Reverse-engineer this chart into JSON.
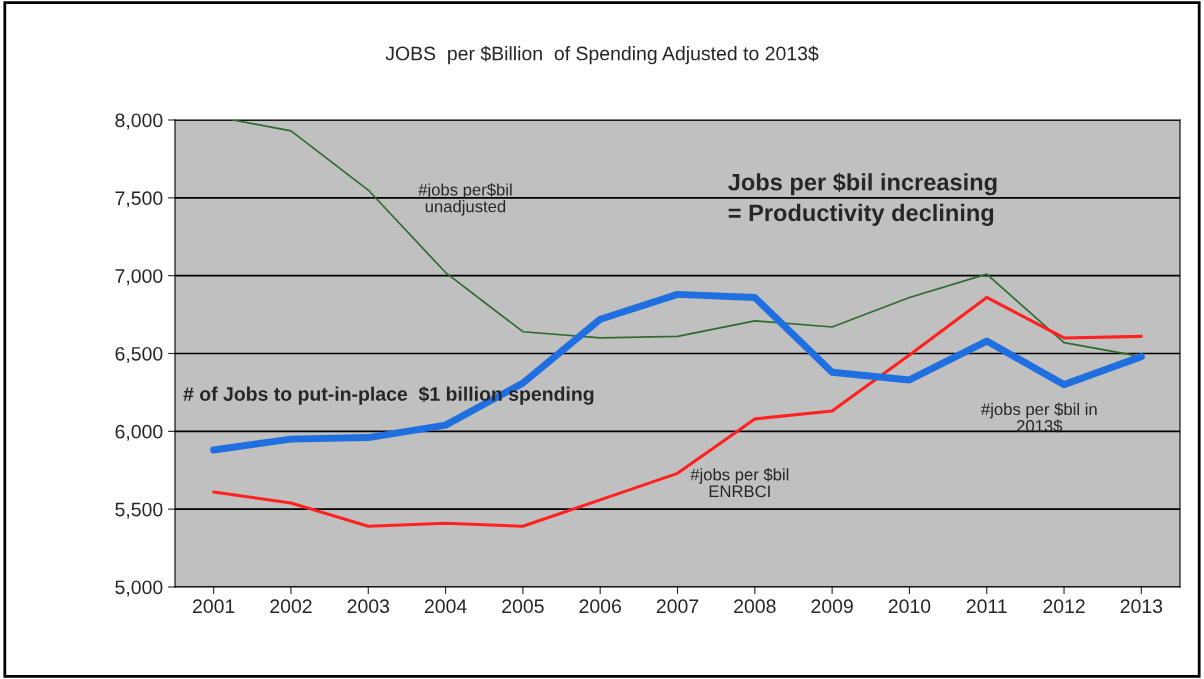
{
  "chart_data": {
    "type": "line",
    "title": "JOBS  per $Billion  of Spending Adjusted to 2013$",
    "x": [
      2001,
      2002,
      2003,
      2004,
      2005,
      2006,
      2007,
      2008,
      2009,
      2010,
      2011,
      2012,
      2013
    ],
    "xlim": [
      2000.5,
      2013.5
    ],
    "xticks": [
      2001,
      2002,
      2003,
      2004,
      2005,
      2006,
      2007,
      2008,
      2009,
      2010,
      2011,
      2012,
      2013
    ],
    "ylim": [
      5000,
      8000
    ],
    "yticks": [
      {
        "value": 5000,
        "label": "5,000"
      },
      {
        "value": 5500,
        "label": "5,500"
      },
      {
        "value": 6000,
        "label": "6,000"
      },
      {
        "value": 6500,
        "label": "6,500"
      },
      {
        "value": 7000,
        "label": "7,000"
      },
      {
        "value": 7500,
        "label": "7,500"
      },
      {
        "value": 8000,
        "label": "8,000"
      }
    ],
    "grid": "y",
    "marker": "none",
    "line_style": "solid",
    "series": [
      {
        "color": "#2e6b2e",
        "x": [
          2001.25,
          2002,
          2003,
          2004,
          2005,
          2006,
          2007,
          2008,
          2009,
          2010,
          2011,
          2012,
          2013
        ],
        "values": [
          8000,
          7930,
          7550,
          7020,
          6640,
          6600,
          6610,
          6710,
          6670,
          6860,
          7010,
          6570,
          6480
        ]
      },
      {
        "color": "#ff2020",
        "values": [
          5610,
          5540,
          5390,
          5410,
          5390,
          5560,
          5730,
          6080,
          6130,
          6490,
          6860,
          6600,
          6610
        ]
      },
      {
        "color": "#1f6fe0",
        "values": [
          5880,
          5950,
          5960,
          6040,
          6310,
          6720,
          6880,
          6860,
          6380,
          6330,
          6580,
          6300,
          6480
        ]
      }
    ],
    "annotations": [
      "#jobs per$bil\nunadjusted",
      "#jobs per $bil\nENRBCI",
      "#jobs per $bil in\n2013$",
      "Jobs per $bil increasing\n= Productivity declining",
      "# of Jobs to put-in-place  $1 billion spending"
    ]
  }
}
